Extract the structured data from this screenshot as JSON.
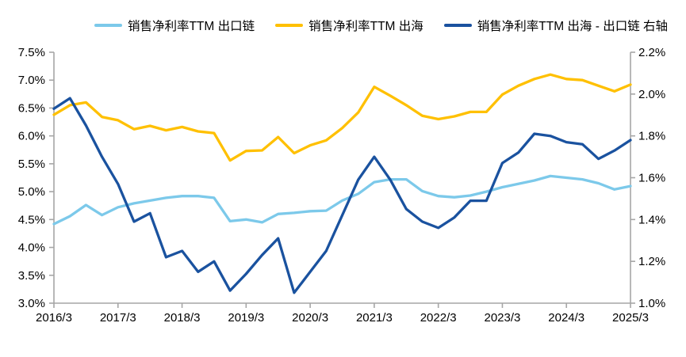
{
  "colors": {
    "background": "#FFFFFF",
    "axis": "#A6A6A6",
    "text": "#000000",
    "series_export_chain": "#7CC9EA",
    "series_overseas": "#FFC000",
    "series_spread": "#1A529F"
  },
  "legend": [
    {
      "label": "销售净利率TTM 出口链",
      "color": "#7CC9EA"
    },
    {
      "label": "销售净利率TTM 出海",
      "color": "#FFC000"
    },
    {
      "label": "销售净利率TTM 出海 - 出口链 右轴",
      "color": "#1A529F"
    }
  ],
  "chart_data": {
    "type": "line",
    "title": "",
    "grid": false,
    "legend_position": "top",
    "x": [
      "2016/3",
      "2016/6",
      "2016/9",
      "2016/12",
      "2017/3",
      "2017/6",
      "2017/9",
      "2017/12",
      "2018/3",
      "2018/6",
      "2018/9",
      "2018/12",
      "2019/3",
      "2019/6",
      "2019/9",
      "2019/12",
      "2020/3",
      "2020/6",
      "2020/9",
      "2020/12",
      "2021/3",
      "2021/6",
      "2021/9",
      "2021/12",
      "2022/3",
      "2022/6",
      "2022/9",
      "2022/12",
      "2023/3",
      "2023/6",
      "2023/9",
      "2023/12",
      "2024/3",
      "2024/6",
      "2024/9",
      "2024/12",
      "2025/3"
    ],
    "x_tick_labels": [
      "2016/3",
      "2017/3",
      "2018/3",
      "2019/3",
      "2020/3",
      "2021/3",
      "2022/3",
      "2023/3",
      "2024/3",
      "2025/3"
    ],
    "x_tick_every": 4,
    "left_axis": {
      "min": 3.0,
      "max": 7.5,
      "step": 0.5,
      "unit": "%",
      "tick_labels": [
        "7.5%",
        "7.0%",
        "6.5%",
        "6.0%",
        "5.5%",
        "5.0%",
        "4.5%",
        "4.0%",
        "3.5%",
        "3.0%"
      ]
    },
    "right_axis": {
      "min": 1.0,
      "max": 2.2,
      "step": 0.2,
      "unit": "%",
      "tick_labels": [
        "2.2%",
        "2.0%",
        "1.8%",
        "1.6%",
        "1.4%",
        "1.2%",
        "1.0%"
      ]
    },
    "series": [
      {
        "name": "销售净利率TTM 出口链",
        "axis": "left",
        "color": "#7CC9EA",
        "values": [
          4.42,
          4.56,
          4.76,
          4.58,
          4.72,
          4.79,
          4.84,
          4.89,
          4.92,
          4.92,
          4.89,
          4.47,
          4.5,
          4.45,
          4.6,
          4.62,
          4.65,
          4.66,
          4.84,
          4.96,
          5.17,
          5.22,
          5.22,
          5.01,
          4.92,
          4.9,
          4.93,
          5.0,
          5.08,
          5.14,
          5.2,
          5.28,
          5.25,
          5.22,
          5.15,
          5.04,
          5.1
        ]
      },
      {
        "name": "销售净利率TTM 出海",
        "axis": "left",
        "color": "#FFC000",
        "values": [
          6.38,
          6.55,
          6.6,
          6.34,
          6.28,
          6.12,
          6.18,
          6.1,
          6.16,
          6.08,
          6.05,
          5.56,
          5.73,
          5.74,
          5.98,
          5.69,
          5.83,
          5.92,
          6.14,
          6.42,
          6.88,
          6.72,
          6.55,
          6.36,
          6.3,
          6.35,
          6.43,
          6.43,
          6.74,
          6.9,
          7.02,
          7.1,
          7.02,
          7.0,
          6.9,
          6.8,
          6.92
        ]
      },
      {
        "name": "销售净利率TTM 出海 - 出口链 右轴",
        "axis": "right",
        "color": "#1A529F",
        "values": [
          1.93,
          1.98,
          1.85,
          1.7,
          1.57,
          1.39,
          1.43,
          1.22,
          1.25,
          1.15,
          1.2,
          1.06,
          1.14,
          1.23,
          1.31,
          1.05,
          1.15,
          1.25,
          1.42,
          1.59,
          1.7,
          1.59,
          1.45,
          1.39,
          1.36,
          1.41,
          1.49,
          1.49,
          1.67,
          1.72,
          1.81,
          1.8,
          1.77,
          1.76,
          1.69,
          1.73,
          1.78
        ]
      }
    ]
  }
}
